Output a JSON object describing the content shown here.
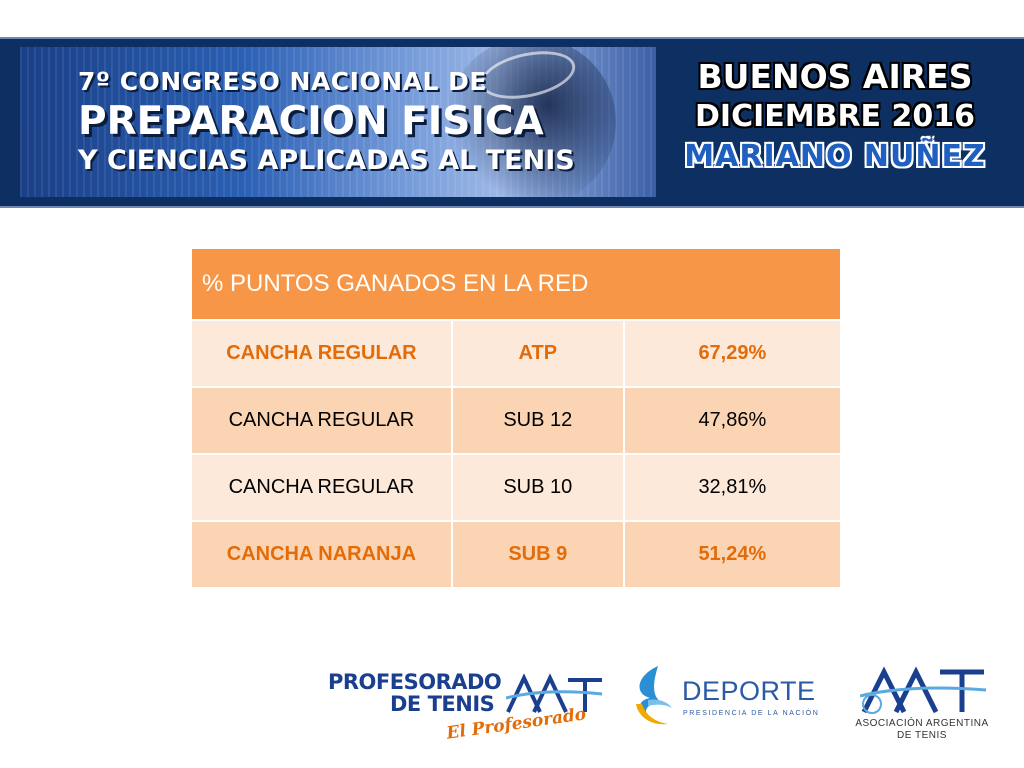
{
  "banner": {
    "line1": "7º CONGRESO NACIONAL DE",
    "line2": "PREPARACION FISICA",
    "line3": "Y CIENCIAS APLICADAS AL TENIS",
    "city": "BUENOS AIRES",
    "date": "DICIEMBRE 2016",
    "speaker": "MARIANO NUÑEZ"
  },
  "table": {
    "title": "% PUNTOS GANADOS EN LA RED",
    "rows": [
      {
        "court": "CANCHA REGULAR",
        "category": "ATP",
        "value": "67,29%",
        "highlight": true
      },
      {
        "court": "CANCHA REGULAR",
        "category": "SUB 12",
        "value": "47,86%",
        "highlight": false
      },
      {
        "court": "CANCHA REGULAR",
        "category": "SUB 10",
        "value": "32,81%",
        "highlight": false
      },
      {
        "court": "CANCHA NARANJA",
        "category": "SUB 9",
        "value": "51,24%",
        "highlight": true
      }
    ]
  },
  "logos": {
    "profesorado_line1": "PROFESORADO",
    "profesorado_line2": "DE TENIS",
    "profesorado_script": "El Profesorado",
    "deporte": "DEPORTE",
    "deporte_sub": "PRESIDENCIA DE LA NACIÓN",
    "aat_line1": "ASOCIACIÓN ARGENTINA",
    "aat_line2": "DE TENIS"
  },
  "colors": {
    "header_orange": "#f79646",
    "highlight_text": "#e36c09",
    "row_light": "#fde9d9",
    "row_dark": "#fbd4b4",
    "banner_blue": "#0e2f62"
  }
}
